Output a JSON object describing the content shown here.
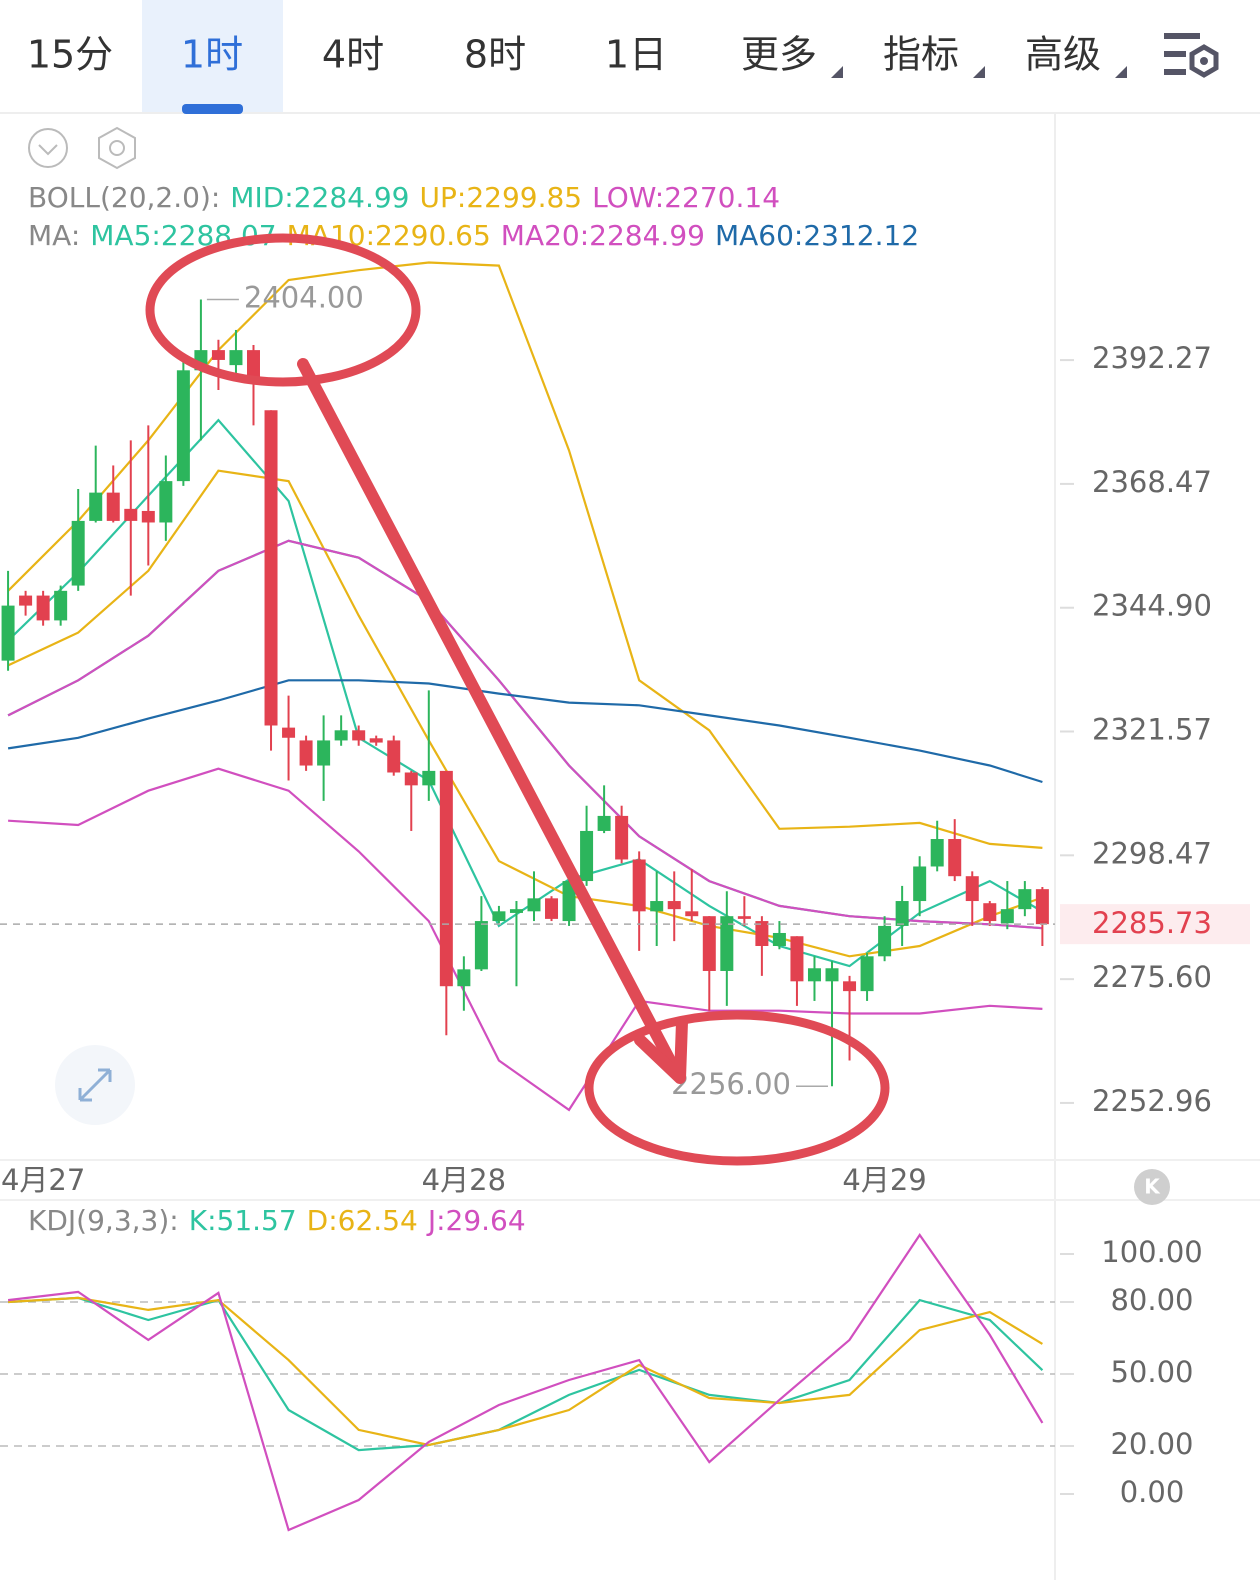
{
  "toolbar": {
    "tabs": [
      "15分",
      "1时",
      "4时",
      "8时",
      "1日"
    ],
    "active": 1,
    "menus": [
      "更多",
      "指标",
      "高级"
    ],
    "kline_button": "K"
  },
  "chart_data": [
    {
      "type": "candlestick",
      "log": true,
      "xlim": [
        -0.46,
        59.72
      ],
      "ylim": [
        2242.6,
        2440.1
      ],
      "xticks": [
        {
          "value": 2,
          "label": "4月27"
        },
        {
          "value": 26,
          "label": "4月28"
        },
        {
          "value": 50,
          "label": "4月29"
        }
      ],
      "yticks": [
        2392.27,
        2368.47,
        {
          "value": 2344.9,
          "label": "2344.90"
        },
        2321.57,
        2298.47,
        {
          "value": 2275.6,
          "label": "2275.60"
        },
        2252.96
      ],
      "last_price": 2285.73,
      "up_color": "#2cb55c",
      "down_color": "#e2414f",
      "x": [
        0,
        1,
        2,
        3,
        4,
        5,
        6,
        7,
        8,
        9,
        10,
        11,
        12,
        13,
        14,
        15,
        16,
        17,
        18,
        19,
        20,
        21,
        22,
        23,
        24,
        25,
        26,
        27,
        28,
        29,
        30,
        31,
        32,
        33,
        34,
        35,
        36,
        37,
        38,
        39,
        40,
        41,
        42,
        43,
        44,
        45,
        46,
        47,
        48,
        49,
        50,
        51,
        52,
        53,
        54,
        55,
        56,
        57,
        58,
        59
      ],
      "open": [
        2334.9,
        2347.2,
        2347.2,
        2342.5,
        2349.1,
        2361.4,
        2366.8,
        2363.7,
        2363.3,
        2361.1,
        2369.0,
        2390.3,
        2394.2,
        2391.3,
        2394.2,
        2382.6,
        2322.3,
        2319.9,
        2315.2,
        2319.9,
        2321.8,
        2320.3,
        2319.9,
        2313.9,
        2311.5,
        2314.2,
        2274.3,
        2277.4,
        2286.3,
        2287.8,
        2288.1,
        2290.5,
        2286.3,
        2293.7,
        2303.0,
        2305.8,
        2297.7,
        2288.1,
        2290.0,
        2288.1,
        2287.2,
        2277.1,
        2287.2,
        2286.3,
        2281.7,
        2283.5,
        2275.2,
        2275.2,
        2275.2,
        2273.4,
        2279.8,
        2285.4,
        2290.0,
        2296.4,
        2301.5,
        2294.6,
        2289.6,
        2285.9,
        2288.5,
        2292.2
      ],
      "high": [
        2351.9,
        2348.1,
        2348.1,
        2349.1,
        2367.5,
        2375.8,
        2372.0,
        2376.8,
        2379.7,
        2373.9,
        2392.3,
        2404,
        2396.2,
        2398.1,
        2395.2,
        2382.6,
        2328.3,
        2320.8,
        2324.6,
        2324.6,
        2322.7,
        2320.8,
        2320.8,
        2314.2,
        2329.3,
        2314.2,
        2279.8,
        2290.9,
        2289.1,
        2290.0,
        2295.5,
        2290.9,
        2294.0,
        2307.7,
        2311.5,
        2307.7,
        2299.2,
        2295.5,
        2295.5,
        2295.9,
        2287.2,
        2291.8,
        2290.9,
        2287.2,
        2286.3,
        2283.5,
        2279.8,
        2278.9,
        2276.2,
        2280.4,
        2287.2,
        2292.8,
        2298.3,
        2304.9,
        2305.2,
        2295.5,
        2290.0,
        2293.7,
        2293.7,
        2292.6
      ],
      "low": [
        2333.0,
        2343.4,
        2341.5,
        2341.5,
        2348.1,
        2361.1,
        2361.1,
        2347.2,
        2352.9,
        2357.6,
        2368.1,
        2376.8,
        2386.5,
        2388.4,
        2379.7,
        2318.0,
        2312.4,
        2314.2,
        2308.6,
        2318.9,
        2318.9,
        2318.9,
        2313.3,
        2303.0,
        2308.6,
        2265.3,
        2269.8,
        2277.1,
        2285.9,
        2274.3,
        2286.3,
        2286.3,
        2285.4,
        2292.8,
        2302.6,
        2297.0,
        2280.8,
        2281.7,
        2282.6,
        2286.3,
        2269.8,
        2270.7,
        2285.4,
        2276.2,
        2281.1,
        2270.7,
        2271.6,
        2256,
        2260.7,
        2271.6,
        2278.9,
        2281.7,
        2287.2,
        2295.5,
        2293.7,
        2285.4,
        2285.4,
        2284.8,
        2287.2,
        2281.7
      ],
      "close": [
        2345.3,
        2345.3,
        2342.5,
        2348.1,
        2361.4,
        2366.8,
        2361.4,
        2361.4,
        2361.1,
        2369.0,
        2390.3,
        2394.2,
        2392.3,
        2394.2,
        2388.4,
        2322.7,
        2320.4,
        2315.2,
        2319.9,
        2321.8,
        2319.9,
        2319.5,
        2313.9,
        2311.5,
        2314.2,
        2274.3,
        2277.4,
        2286.3,
        2288.1,
        2288.5,
        2290.5,
        2286.7,
        2293.7,
        2303.0,
        2305.8,
        2297.7,
        2288.1,
        2290.0,
        2288.5,
        2287.2,
        2277.1,
        2287.2,
        2286.7,
        2281.7,
        2284.1,
        2275.2,
        2277.6,
        2277.6,
        2273.4,
        2279.8,
        2285.4,
        2290.0,
        2296.4,
        2301.5,
        2294.6,
        2290.0,
        2286.3,
        2288.5,
        2292.2,
        2285.73
      ],
      "annotations": [
        {
          "x": 11,
          "value": 2404,
          "label": "2404.00",
          "side": "right"
        },
        {
          "x": 47,
          "value": 2256,
          "label": "2256.00",
          "side": "left"
        }
      ],
      "indicators": [
        {
          "label": "BOLL(20,2.0):",
          "series": [
            {
              "name": "MID:2284.99",
              "color": "#2ec4a0",
              "x": [
                0,
                4,
                8,
                12,
                16,
                20,
                24,
                28,
                32,
                36,
                40,
                44,
                48,
                52,
                56,
                59
              ],
              "values": [
                2324.6,
                2331.2,
                2339.6,
                2351.9,
                2357.6,
                2354.4,
                2346.2,
                2331.2,
                2315.2,
                2302.0,
                2293.7,
                2289.1,
                2287.2,
                2286.3,
                2285.7,
                2284.99
              ]
            },
            {
              "name": "UP:2299.85",
              "color": "#e8b416",
              "x": [
                0,
                4,
                8,
                12,
                16,
                20,
                24,
                28,
                32,
                36,
                40,
                44,
                48,
                52,
                56,
                59
              ],
              "values": [
                2348.1,
                2361.4,
                2376.8,
                2394.2,
                2407.8,
                2409.7,
                2411.2,
                2410.6,
                2374.9,
                2331.2,
                2321.8,
                2303.4,
                2303.8,
                2304.5,
                2300.6,
                2299.85
              ]
            },
            {
              "name": "LOW:2270.14",
              "color": "#d14fbf",
              "x": [
                0,
                4,
                8,
                12,
                16,
                20,
                24,
                28,
                32,
                36,
                40,
                44,
                48,
                52,
                56,
                59
              ],
              "values": [
                2304.9,
                2304.1,
                2310.5,
                2314.6,
                2310.5,
                2299.2,
                2286.3,
                2260.7,
                2251.7,
                2271.6,
                2269.8,
                2269.8,
                2269.3,
                2269.3,
                2270.7,
                2270.14
              ]
            }
          ]
        },
        {
          "label": "MA:",
          "series": [
            {
              "name": "MA5:2288.07",
              "color": "#2ec4a0",
              "x": [
                0,
                4,
                8,
                12,
                16,
                20,
                24,
                28,
                32,
                36,
                40,
                44,
                48,
                52,
                56,
                59
              ],
              "values": [
                2338.7,
                2351.6,
                2366.2,
                2380.7,
                2365.2,
                2320.4,
                2312.4,
                2285.4,
                2294.0,
                2297.7,
                2289.1,
                2281.7,
                2278.0,
                2287.8,
                2293.7,
                2288.07
              ]
            },
            {
              "name": "MA10:2290.65",
              "color": "#e8b416",
              "x": [
                0,
                4,
                8,
                12,
                16,
                20,
                24,
                28,
                32,
                36,
                40,
                44,
                48,
                52,
                56,
                59
              ],
              "values": [
                2334.0,
                2340.2,
                2351.9,
                2371.0,
                2369.0,
                2343.4,
                2319.9,
                2297.4,
                2290.9,
                2289.1,
                2285.4,
                2283.2,
                2279.8,
                2281.7,
                2287.2,
                2290.65
              ]
            },
            {
              "name": "MA20:2284.99",
              "color": "#d14fbf",
              "x": [
                0,
                4,
                8,
                12,
                16,
                20,
                24,
                28,
                32,
                36,
                40,
                44,
                48,
                52,
                56,
                59
              ],
              "values": [
                2324.6,
                2331.2,
                2339.6,
                2351.9,
                2357.6,
                2354.4,
                2346.2,
                2331.2,
                2315.2,
                2302.0,
                2293.7,
                2289.1,
                2287.2,
                2286.3,
                2285.7,
                2284.99
              ]
            },
            {
              "name": "MA60:2312.12",
              "color": "#1f6aa8",
              "x": [
                0,
                4,
                8,
                12,
                16,
                20,
                24,
                28,
                32,
                36,
                40,
                44,
                48,
                52,
                56,
                59
              ],
              "values": [
                2318.4,
                2320.4,
                2324.0,
                2327.4,
                2331.2,
                2331.2,
                2330.6,
                2328.7,
                2327.0,
                2326.5,
                2324.6,
                2322.7,
                2320.4,
                2318.0,
                2315.2,
                2312.12
              ]
            }
          ]
        }
      ]
    },
    {
      "type": "line",
      "legend_label": "KDJ(9,3,3):",
      "xlim": [
        -0.46,
        59.72
      ],
      "ylim": [
        -27.5,
        122.5
      ],
      "yticks": [
        {
          "value": 100,
          "label": "100.00"
        },
        {
          "value": 80,
          "label": "80.00"
        },
        {
          "value": 50,
          "label": "50.00"
        },
        {
          "value": 20,
          "label": "20.00"
        },
        {
          "value": 0,
          "label": "0.00"
        }
      ],
      "hlines": [
        80,
        50,
        20
      ],
      "series": [
        {
          "name": "K:51.57",
          "color": "#2ec4a0",
          "x": [
            0,
            4,
            8,
            12,
            16,
            20,
            24,
            28,
            32,
            36,
            40,
            44,
            48,
            52,
            56,
            59
          ],
          "values": [
            80.0,
            81.7,
            72.5,
            80.8,
            35.0,
            18.3,
            20.4,
            26.7,
            41.3,
            51.7,
            41.3,
            37.9,
            47.5,
            80.8,
            72.5,
            51.57
          ]
        },
        {
          "name": "D:62.54",
          "color": "#e8b416",
          "x": [
            0,
            4,
            8,
            12,
            16,
            20,
            24,
            28,
            32,
            36,
            40,
            44,
            48,
            52,
            56,
            59
          ],
          "values": [
            80.0,
            81.7,
            76.7,
            80.8,
            55.8,
            26.7,
            20.4,
            26.7,
            35.0,
            53.8,
            40.0,
            37.9,
            41.3,
            68.3,
            75.8,
            62.54
          ]
        },
        {
          "name": "J:29.64",
          "color": "#d14fbf",
          "x": [
            0,
            4,
            8,
            12,
            16,
            20,
            24,
            28,
            32,
            36,
            40,
            44,
            48,
            52,
            56,
            59
          ],
          "values": [
            80.8,
            84.2,
            64.2,
            83.8,
            -15.0,
            -2.5,
            21.7,
            37.1,
            47.5,
            55.8,
            13.3,
            39.2,
            64.2,
            107.9,
            66.3,
            29.64
          ]
        }
      ]
    }
  ]
}
